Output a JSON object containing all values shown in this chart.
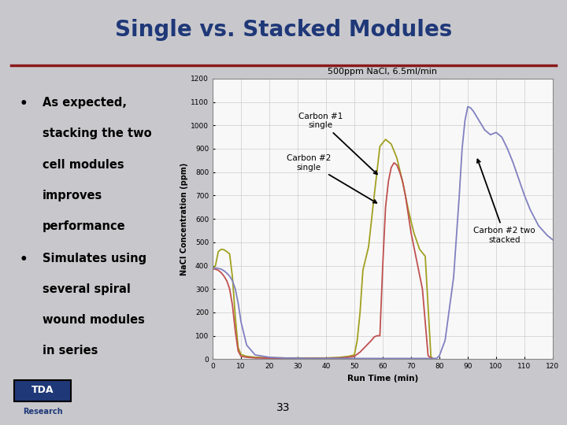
{
  "title": "Single vs. Stacked Modules",
  "subtitle": "500ppm NaCl, 6.5ml/min",
  "xlabel": "Run Time (min)",
  "ylabel": "NaCl Concentration (ppm)",
  "xlim": [
    0,
    120
  ],
  "ylim": [
    0,
    1200
  ],
  "xticks": [
    0,
    10,
    20,
    30,
    40,
    50,
    60,
    70,
    80,
    90,
    100,
    110,
    120
  ],
  "yticks": [
    0,
    100,
    200,
    300,
    400,
    500,
    600,
    700,
    800,
    900,
    1000,
    1100,
    1200
  ],
  "slide_bg": "#c8c8cc",
  "title_bg": "#b0b0bc",
  "title_color": "#1f3878",
  "title_fontsize": 20,
  "bullet1_line1": "As expected,",
  "bullet1_line2": "stacking the two",
  "bullet1_line3": "cell modules",
  "bullet1_line4": "improves",
  "bullet1_line5": "performance",
  "bullet2_line1": "Simulates using",
  "bullet2_line2": "several spiral",
  "bullet2_line3": "wound modules",
  "bullet2_line4": "in series",
  "page_number": "33",
  "annotation1_text": "Carbon #1\nsingle",
  "annotation2_text": "Carbon #2\nsingle",
  "annotation3_text": "Carbon #2 two\nstacked",
  "curve1_color": "#a0a020",
  "curve2_color": "#c05050",
  "curve3_color": "#8080c0",
  "line_separator_color": "#8b1a1a",
  "chart_bg": "#f8f8f8",
  "grid_color": "#cccccc"
}
